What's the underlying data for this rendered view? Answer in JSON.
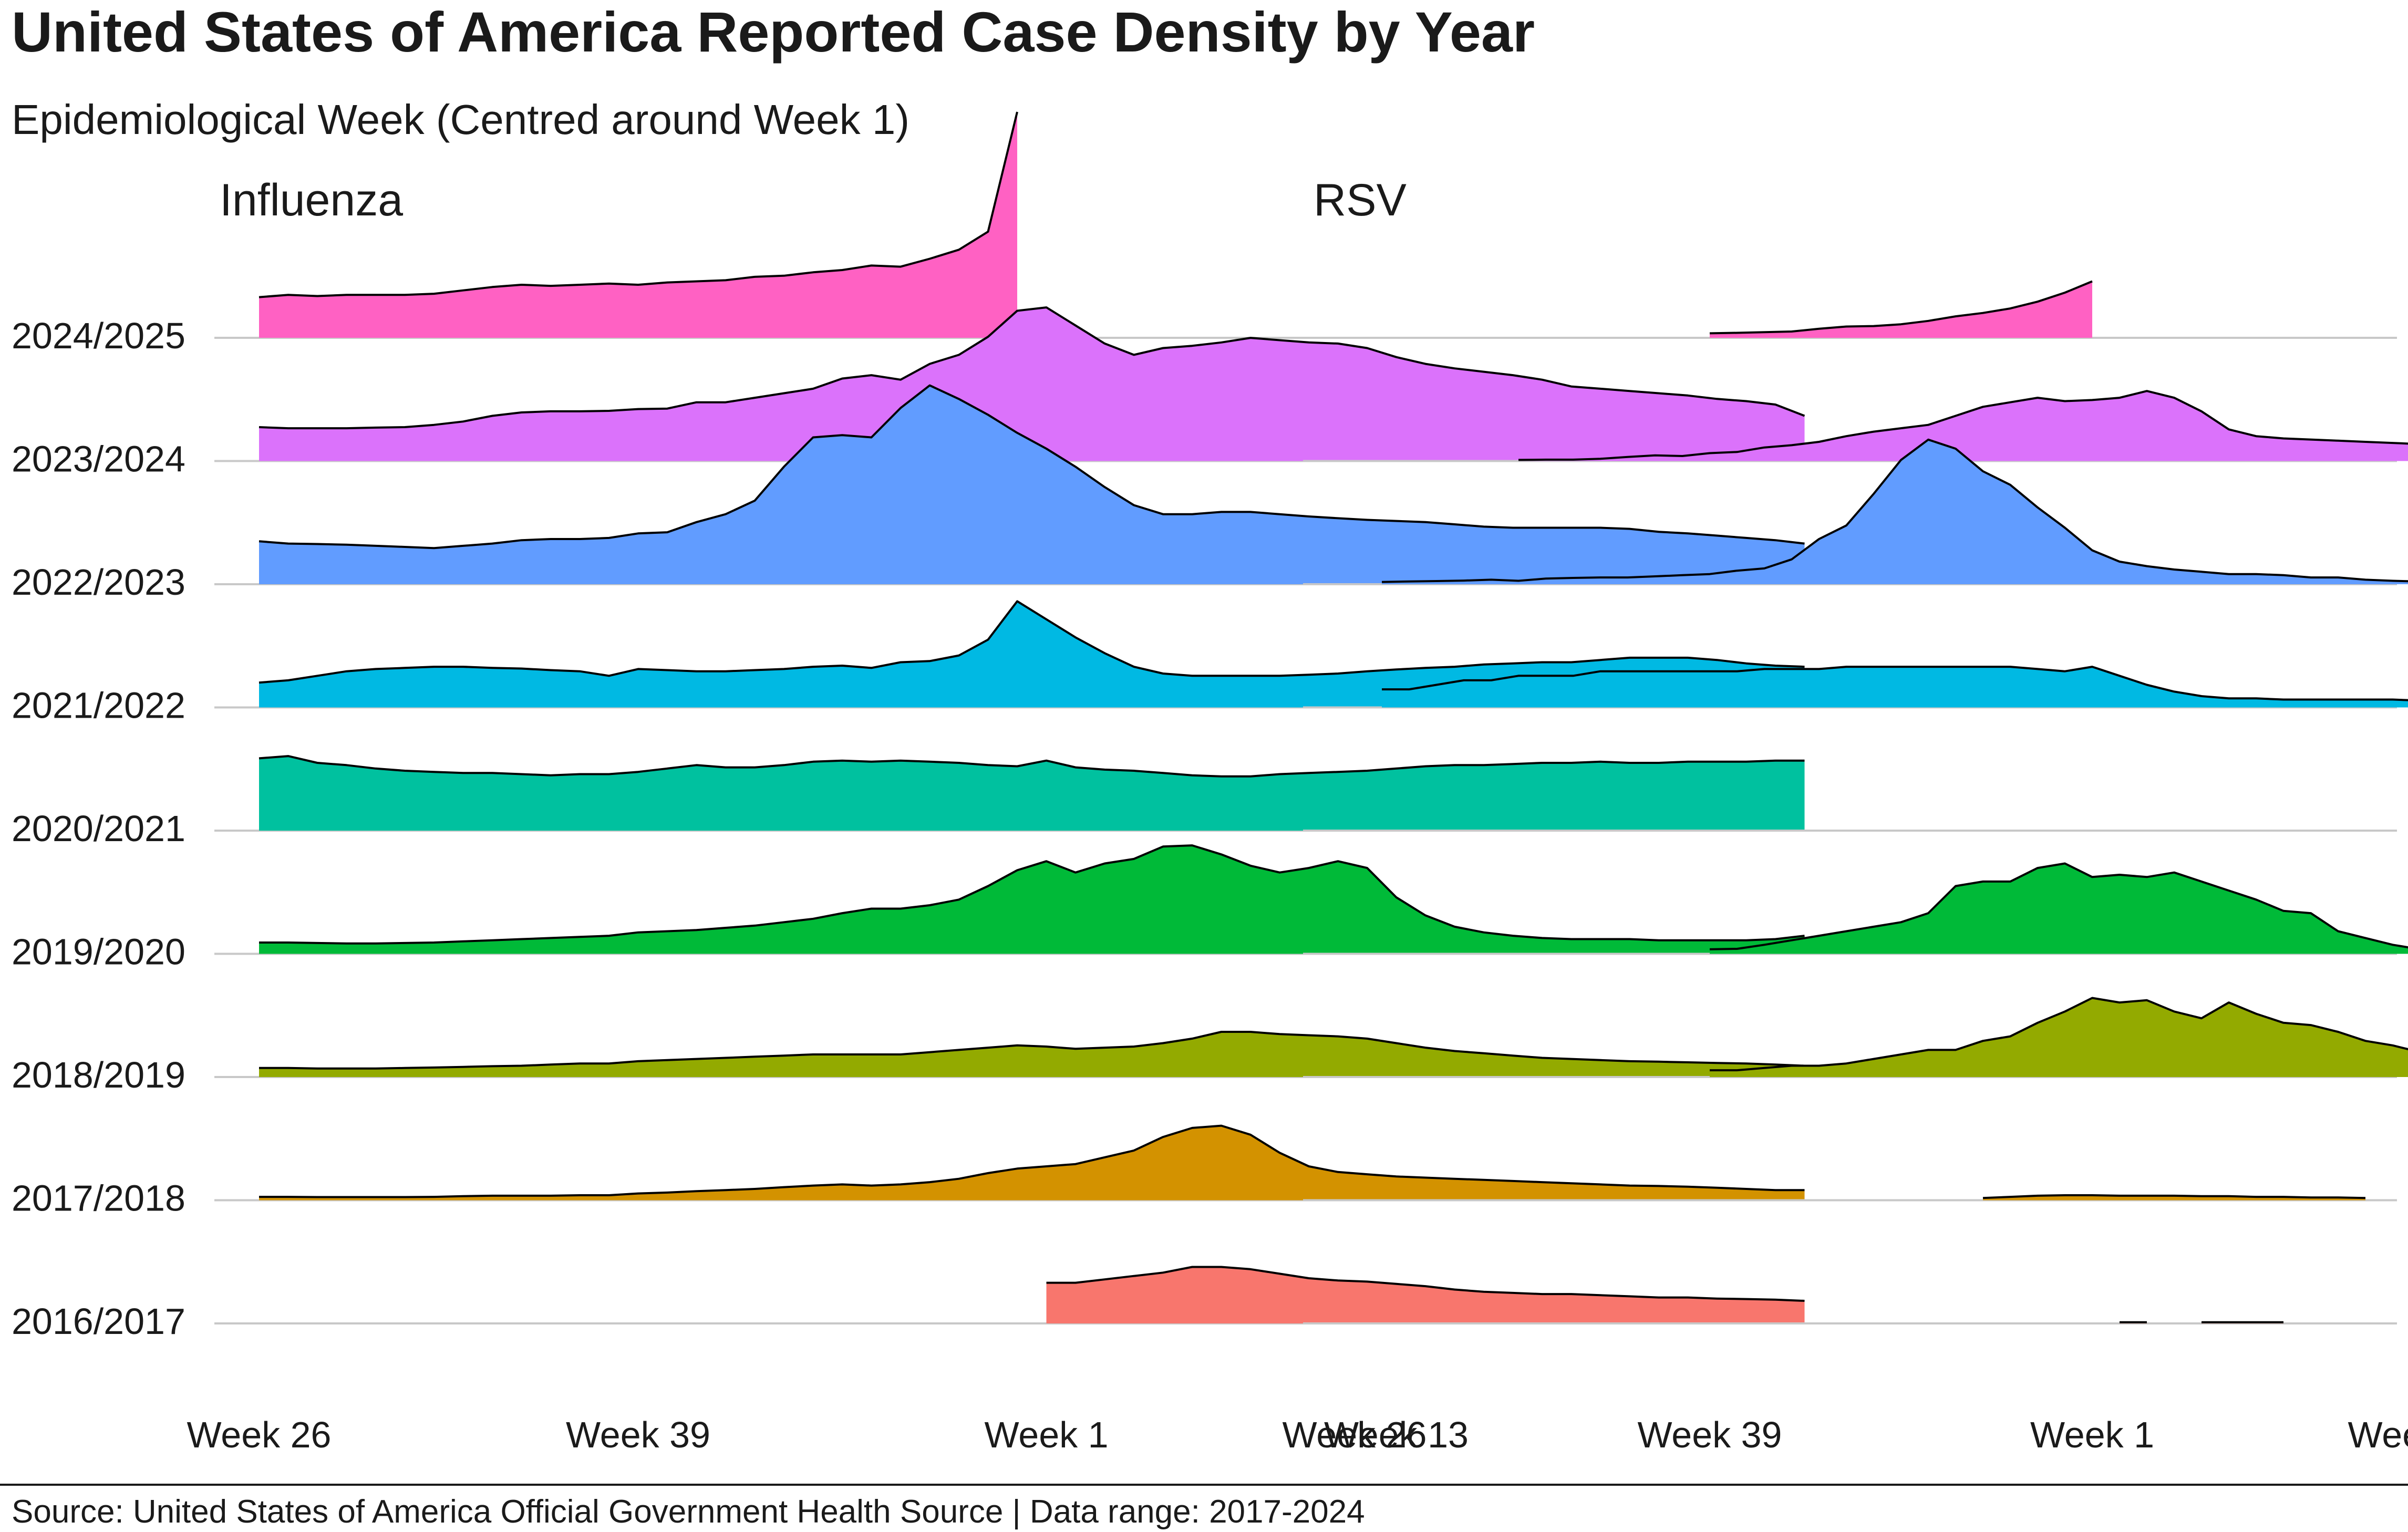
{
  "chart_data": {
    "type": "area",
    "title": "United States of America Reported Case Density by Year",
    "subtitle": "Epidemiological Week (Centred around Week 1)",
    "caption": "Source: United States of America Official Government Health Source | Data range: 2017-2024",
    "seasons": [
      "2024/2025",
      "2023/2024",
      "2022/2023",
      "2021/2022",
      "2020/2021",
      "2019/2020",
      "2018/2019",
      "2017/2018",
      "2016/2017"
    ],
    "colors": {
      "2024/2025": "#FF61C3",
      "2023/2024": "#DB72FB",
      "2022/2023": "#619CFF",
      "2021/2022": "#00B9E3",
      "2020/2021": "#00C19F",
      "2019/2020": "#00BA38",
      "2018/2019": "#93AA00",
      "2017/2018": "#D39200",
      "2016/2017": "#F8766D"
    },
    "x_axis": {
      "unit": "weeks relative to Week 1",
      "range": [
        -27,
        24
      ],
      "ticks": [
        {
          "label": "Week 26",
          "value": -27
        },
        {
          "label": "Week 39",
          "value": -14
        },
        {
          "label": "Week 1",
          "value": 0
        },
        {
          "label": "Week 13",
          "value": 12
        }
      ]
    },
    "y_axis": {
      "density_max": 1.0
    },
    "panels": [
      {
        "name": "Influenza",
        "series": [
          {
            "season": "2024/2025",
            "x_start": -27,
            "values": [
              0.18,
              0.19,
              0.185,
              0.19,
              0.19,
              0.19,
              0.195,
              0.21,
              0.225,
              0.235,
              0.23,
              0.235,
              0.24,
              0.235,
              0.245,
              0.25,
              0.255,
              0.27,
              0.275,
              0.29,
              0.3,
              0.32,
              0.315,
              0.35,
              0.39,
              0.47,
              1.0
            ]
          },
          {
            "season": "2023/2024",
            "x_start": -27,
            "values": [
              0.15,
              0.145,
              0.145,
              0.145,
              0.148,
              0.15,
              0.16,
              0.175,
              0.2,
              0.215,
              0.22,
              0.22,
              0.222,
              0.23,
              0.232,
              0.26,
              0.26,
              0.28,
              0.3,
              0.32,
              0.365,
              0.38,
              0.36,
              0.43,
              0.47,
              0.55,
              0.665,
              0.68,
              0.6,
              0.52,
              0.47,
              0.5,
              0.51,
              0.525,
              0.545,
              0.535,
              0.525,
              0.52,
              0.5,
              0.46,
              0.43,
              0.41,
              0.395,
              0.38,
              0.36,
              0.33,
              0.32,
              0.31,
              0.3,
              0.29,
              0.275,
              0.265,
              0.25,
              0.2
            ]
          },
          {
            "season": "2022/2023",
            "x_start": -27,
            "values": [
              0.19,
              0.18,
              0.178,
              0.175,
              0.17,
              0.165,
              0.16,
              0.17,
              0.18,
              0.195,
              0.2,
              0.2,
              0.205,
              0.225,
              0.23,
              0.275,
              0.31,
              0.37,
              0.52,
              0.65,
              0.66,
              0.65,
              0.78,
              0.88,
              0.82,
              0.75,
              0.67,
              0.6,
              0.52,
              0.43,
              0.35,
              0.31,
              0.31,
              0.32,
              0.32,
              0.31,
              0.3,
              0.292,
              0.285,
              0.28,
              0.275,
              0.265,
              0.255,
              0.25,
              0.25,
              0.25,
              0.25,
              0.245,
              0.232,
              0.225,
              0.215,
              0.205,
              0.195,
              0.18
            ]
          },
          {
            "season": "2021/2022",
            "x_start": -27,
            "values": [
              0.11,
              0.12,
              0.14,
              0.16,
              0.17,
              0.175,
              0.18,
              0.18,
              0.175,
              0.172,
              0.165,
              0.16,
              0.14,
              0.17,
              0.165,
              0.16,
              0.16,
              0.165,
              0.17,
              0.18,
              0.185,
              0.175,
              0.2,
              0.205,
              0.23,
              0.3,
              0.47,
              0.39,
              0.31,
              0.24,
              0.18,
              0.15,
              0.14,
              0.14,
              0.14,
              0.14,
              0.145,
              0.15,
              0.16,
              0.168,
              0.175,
              0.18,
              0.19,
              0.195,
              0.2,
              0.2,
              0.21,
              0.22,
              0.22,
              0.22,
              0.21,
              0.195,
              0.185,
              0.18
            ]
          },
          {
            "season": "2020/2021",
            "x_start": -27,
            "values": [
              0.32,
              0.33,
              0.3,
              0.29,
              0.275,
              0.265,
              0.26,
              0.255,
              0.255,
              0.25,
              0.245,
              0.25,
              0.25,
              0.26,
              0.275,
              0.29,
              0.28,
              0.28,
              0.29,
              0.305,
              0.31,
              0.305,
              0.31,
              0.305,
              0.3,
              0.29,
              0.285,
              0.31,
              0.28,
              0.27,
              0.265,
              0.255,
              0.245,
              0.24,
              0.24,
              0.25,
              0.255,
              0.26,
              0.265,
              0.275,
              0.285,
              0.29,
              0.29,
              0.295,
              0.3,
              0.3,
              0.305,
              0.3,
              0.3,
              0.305,
              0.305,
              0.305,
              0.31,
              0.31
            ]
          },
          {
            "season": "2019/2020",
            "x_start": -27,
            "values": [
              0.05,
              0.05,
              0.048,
              0.046,
              0.046,
              0.048,
              0.05,
              0.055,
              0.06,
              0.065,
              0.07,
              0.075,
              0.08,
              0.095,
              0.1,
              0.105,
              0.115,
              0.125,
              0.14,
              0.155,
              0.18,
              0.2,
              0.2,
              0.215,
              0.24,
              0.3,
              0.37,
              0.41,
              0.36,
              0.4,
              0.42,
              0.475,
              0.48,
              0.44,
              0.39,
              0.36,
              0.38,
              0.41,
              0.38,
              0.25,
              0.17,
              0.12,
              0.095,
              0.08,
              0.07,
              0.065,
              0.065,
              0.065,
              0.06,
              0.06,
              0.06,
              0.06,
              0.065,
              0.08
            ]
          },
          {
            "season": "2018/2019",
            "x_start": -27,
            "values": [
              0.04,
              0.04,
              0.038,
              0.038,
              0.038,
              0.04,
              0.042,
              0.045,
              0.048,
              0.05,
              0.055,
              0.06,
              0.06,
              0.07,
              0.075,
              0.08,
              0.085,
              0.09,
              0.095,
              0.1,
              0.1,
              0.1,
              0.1,
              0.11,
              0.12,
              0.13,
              0.14,
              0.135,
              0.125,
              0.13,
              0.135,
              0.15,
              0.17,
              0.2,
              0.2,
              0.19,
              0.185,
              0.18,
              0.17,
              0.15,
              0.13,
              0.115,
              0.105,
              0.095,
              0.085,
              0.08,
              0.075,
              0.07,
              0.068,
              0.065,
              0.062,
              0.06,
              0.055,
              0.05
            ]
          },
          {
            "season": "2017/2018",
            "x_start": -27,
            "values": [
              0.015,
              0.015,
              0.014,
              0.014,
              0.014,
              0.014,
              0.015,
              0.018,
              0.02,
              0.02,
              0.02,
              0.022,
              0.022,
              0.03,
              0.034,
              0.04,
              0.045,
              0.05,
              0.058,
              0.065,
              0.07,
              0.065,
              0.07,
              0.08,
              0.095,
              0.12,
              0.14,
              0.15,
              0.16,
              0.19,
              0.22,
              0.28,
              0.32,
              0.33,
              0.29,
              0.21,
              0.15,
              0.125,
              0.115,
              0.105,
              0.1,
              0.095,
              0.09,
              0.085,
              0.08,
              0.075,
              0.07,
              0.065,
              0.063,
              0.06,
              0.055,
              0.05,
              0.045,
              0.045
            ]
          },
          {
            "season": "2016/2017",
            "x_start": 0,
            "values": [
              0.18,
              0.18,
              0.195,
              0.21,
              0.225,
              0.25,
              0.25,
              0.24,
              0.22,
              0.2,
              0.19,
              0.185,
              0.175,
              0.165,
              0.15,
              0.14,
              0.135,
              0.13,
              0.13,
              0.125,
              0.12,
              0.115,
              0.115,
              0.11,
              0.108,
              0.105,
              0.1
            ]
          }
        ]
      },
      {
        "name": "RSV",
        "series": [
          {
            "season": "2024/2025",
            "x_start": -14,
            "values": [
              0.02,
              0.022,
              0.025,
              0.028,
              0.04,
              0.05,
              0.052,
              0.06,
              0.075,
              0.095,
              0.11,
              0.13,
              0.16,
              0.2,
              0.25
            ]
          },
          {
            "season": "2023/2024",
            "x_start": -21,
            "values": [
              0.005,
              0.006,
              0.006,
              0.01,
              0.018,
              0.025,
              0.022,
              0.035,
              0.04,
              0.06,
              0.07,
              0.085,
              0.11,
              0.13,
              0.145,
              0.16,
              0.2,
              0.24,
              0.26,
              0.28,
              0.265,
              0.27,
              0.28,
              0.31,
              0.28,
              0.22,
              0.14,
              0.11,
              0.1,
              0.095,
              0.09,
              0.085,
              0.08,
              0.075,
              0.07,
              0.065,
              0.062,
              0.06,
              0.052,
              0.05
            ]
          },
          {
            "season": "2022/2023",
            "x_start": -26,
            "values": [
              0.01,
              0.012,
              0.014,
              0.016,
              0.02,
              0.015,
              0.025,
              0.028,
              0.03,
              0.03,
              0.035,
              0.04,
              0.045,
              0.06,
              0.07,
              0.11,
              0.2,
              0.26,
              0.4,
              0.55,
              0.64,
              0.6,
              0.5,
              0.44,
              0.34,
              0.25,
              0.15,
              0.1,
              0.08,
              0.065,
              0.055,
              0.045,
              0.045,
              0.04,
              0.03,
              0.03,
              0.02,
              0.015,
              0.012,
              0.01,
              0.01
            ]
          },
          {
            "season": "2021/2022",
            "x_start": -26,
            "values": [
              0.08,
              0.08,
              0.1,
              0.12,
              0.12,
              0.14,
              0.14,
              0.14,
              0.16,
              0.16,
              0.16,
              0.16,
              0.16,
              0.16,
              0.17,
              0.17,
              0.17,
              0.18,
              0.18,
              0.18,
              0.18,
              0.18,
              0.18,
              0.18,
              0.17,
              0.16,
              0.18,
              0.14,
              0.1,
              0.07,
              0.05,
              0.04,
              0.04,
              0.035,
              0.035,
              0.035,
              0.035,
              0.035,
              0.03,
              0.03,
              0.035,
              0.035,
              0.035,
              0.035,
              0.035,
              0.035,
              0.035,
              0.035,
              0.035,
              0.035,
              0.04,
              0.04,
              0.04,
              0.04
            ]
          },
          {
            "season": "2020/2021",
            "x_start": 17,
            "values": [
              0.02,
              0.022,
              0.025,
              0.03,
              0.035,
              0.045,
              0.055,
              0.065
            ]
          },
          {
            "season": "2019/2020",
            "x_start": -14,
            "values": [
              0.02,
              0.022,
              0.04,
              0.06,
              0.08,
              0.1,
              0.12,
              0.14,
              0.18,
              0.3,
              0.32,
              0.32,
              0.38,
              0.4,
              0.34,
              0.35,
              0.34,
              0.36,
              0.32,
              0.28,
              0.24,
              0.19,
              0.18,
              0.1,
              0.07,
              0.04,
              0.02
            ]
          },
          {
            "season": "2018/2019",
            "x_start": -14,
            "values": [
              0.03,
              0.03,
              0.04,
              0.05,
              0.05,
              0.06,
              0.08,
              0.1,
              0.12,
              0.12,
              0.16,
              0.18,
              0.24,
              0.29,
              0.35,
              0.33,
              0.34,
              0.29,
              0.26,
              0.33,
              0.28,
              0.24,
              0.23,
              0.2,
              0.16,
              0.14,
              0.11,
              0.1,
              0.09,
              0.06,
              0.04,
              0.02
            ]
          },
          {
            "season": "2017/2018",
            "x_start": -4,
            "values": [
              0.01,
              0.015,
              0.02,
              0.022,
              0.022,
              0.02,
              0.02,
              0.02,
              0.018,
              0.018,
              0.015,
              0.015,
              0.012,
              0.012,
              0.01
            ]
          },
          {
            "season": "2016/2017",
            "segments": [
              {
                "x_start": 1,
                "values": [
                  0.005,
                  0.005
                ]
              },
              {
                "x_start": 4,
                "values": [
                  0.005,
                  0.005,
                  0.005,
                  0.005
                ]
              }
            ]
          }
        ]
      }
    ]
  }
}
